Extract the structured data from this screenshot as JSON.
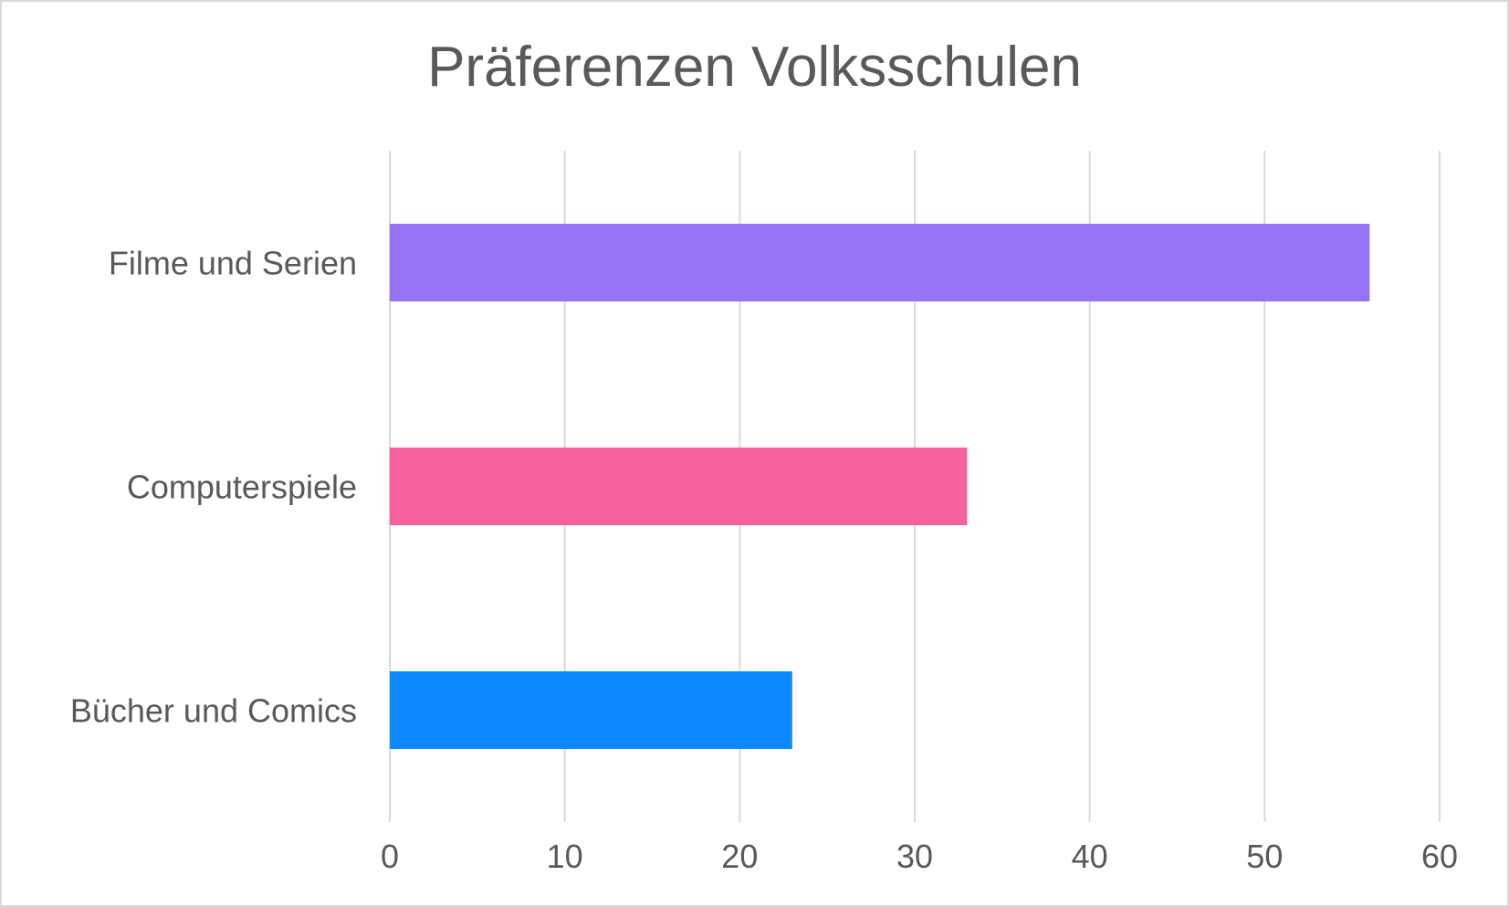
{
  "chart_data": {
    "type": "bar",
    "orientation": "horizontal",
    "title": "Präferenzen Volksschulen",
    "xlabel": "",
    "ylabel": "",
    "categories": [
      "Filme und Serien",
      "Computerspiele",
      "Bücher und Comics"
    ],
    "values": [
      56,
      33,
      23
    ],
    "colors": [
      "#9673f5",
      "#f5629c",
      "#0c89fd"
    ],
    "xlim": [
      0,
      60
    ],
    "ticks": [
      "0",
      "10",
      "20",
      "30",
      "40",
      "50",
      "60"
    ],
    "grid": true,
    "legend": "none"
  }
}
